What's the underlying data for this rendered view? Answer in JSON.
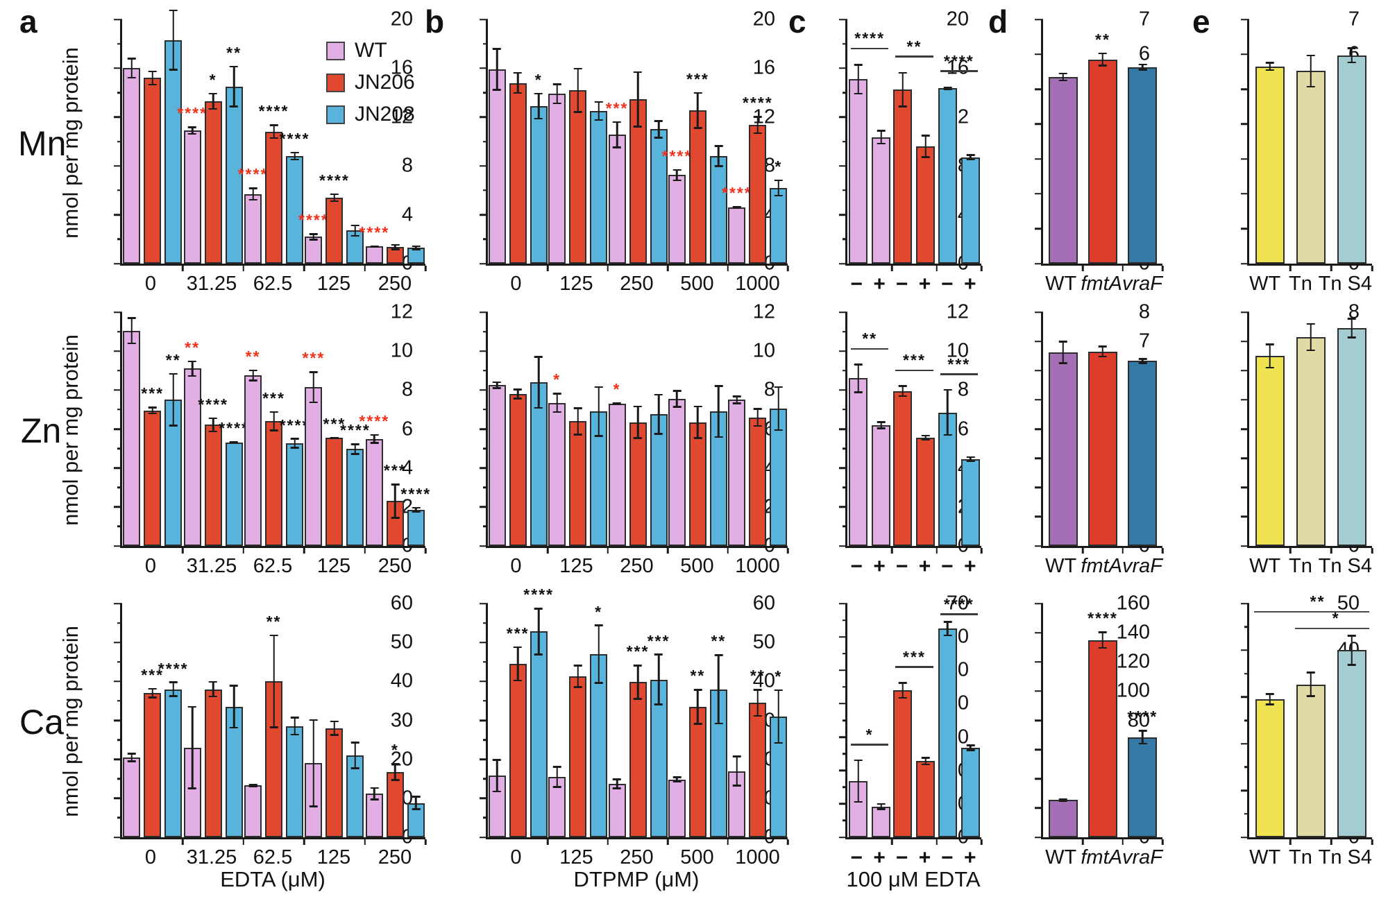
{
  "figure": {
    "panel_letters": [
      {
        "id": "a",
        "label": "a"
      },
      {
        "id": "b",
        "label": "b"
      },
      {
        "id": "c",
        "label": "c"
      },
      {
        "id": "d",
        "label": "d"
      },
      {
        "id": "e",
        "label": "e"
      }
    ],
    "rows": [
      {
        "id": "mn",
        "label": "Mn"
      },
      {
        "id": "zn",
        "label": "Zn"
      },
      {
        "id": "ca",
        "label": "Ca"
      }
    ],
    "y_axis_label": "nmol per mg protein",
    "axis_titles": {
      "a": "EDTA (μM)",
      "b": "DTPMP (μM)",
      "c": "100 μM EDTA"
    },
    "legend": {
      "items": [
        {
          "label": "WT",
          "color": "#E2AFE4"
        },
        {
          "label": "JN206",
          "color": "#E0482F"
        },
        {
          "label": "JN208",
          "color": "#58B4DA"
        }
      ]
    },
    "colors": {
      "wt": "#E2AFE4",
      "jn206": "#E0482F",
      "jn208": "#58B4DA",
      "purple": "#A56FB5",
      "red2": "#DC3D2C",
      "blue2": "#3579A7",
      "yellow": "#F0E351",
      "khaki": "#DFDAA6",
      "teal": "#A3CDD1",
      "axis": "#1a1a1a",
      "sig": "#111111",
      "sig_red": "#F0331C"
    }
  },
  "chart_data": [
    {
      "id": "mn-a",
      "row": "Mn",
      "panel": "a",
      "type": "bar",
      "kind": "grouped",
      "ylim": [
        0,
        20
      ],
      "ymajor": 4,
      "yminor": 2,
      "categories": [
        "0",
        "31.25",
        "62.5",
        "125",
        "250"
      ],
      "series": [
        {
          "name": "WT",
          "color": "wt",
          "values": [
            16.0,
            10.9,
            5.7,
            2.2,
            1.4
          ],
          "errors": [
            0.85,
            0.35,
            0.55,
            0.3,
            0.1
          ],
          "sig": [
            "",
            "r:****",
            "r:****",
            "r:****",
            "r:****"
          ]
        },
        {
          "name": "JN206",
          "color": "jn206",
          "values": [
            15.2,
            13.3,
            10.8,
            5.4,
            1.35
          ],
          "errors": [
            0.6,
            0.7,
            0.6,
            0.35,
            0.25
          ],
          "sig": [
            "",
            "*",
            "****",
            "****",
            ""
          ]
        },
        {
          "name": "JN208",
          "color": "jn208",
          "values": [
            18.3,
            14.5,
            8.8,
            2.7,
            1.3
          ],
          "errors": [
            2.5,
            1.7,
            0.35,
            0.5,
            0.2
          ],
          "sig": [
            "",
            "**",
            "****",
            "",
            ""
          ]
        }
      ]
    },
    {
      "id": "mn-b",
      "row": "Mn",
      "panel": "b",
      "type": "bar",
      "kind": "grouped",
      "ylim": [
        0,
        20
      ],
      "ymajor": 4,
      "yminor": 2,
      "categories": [
        "0",
        "125",
        "250",
        "500",
        "1000"
      ],
      "series": [
        {
          "name": "WT",
          "color": "wt",
          "values": [
            15.9,
            13.9,
            10.55,
            7.25,
            4.6
          ],
          "errors": [
            1.75,
            0.85,
            1.1,
            0.5,
            0.1
          ],
          "sig": [
            "",
            "",
            "r:***",
            "r:****",
            "r:****"
          ]
        },
        {
          "name": "JN206",
          "color": "jn206",
          "values": [
            14.8,
            14.2,
            13.45,
            12.55,
            11.35
          ],
          "errors": [
            0.9,
            1.85,
            2.3,
            1.5,
            0.75
          ],
          "sig": [
            "",
            "",
            "",
            "***",
            "****"
          ]
        },
        {
          "name": "JN208",
          "color": "jn208",
          "values": [
            12.9,
            12.5,
            11.0,
            8.8,
            6.2
          ],
          "errors": [
            1.1,
            0.8,
            0.75,
            0.9,
            0.7
          ],
          "sig": [
            "*",
            "",
            "",
            "",
            "*"
          ]
        }
      ]
    },
    {
      "id": "mn-c",
      "row": "Mn",
      "panel": "c",
      "type": "bar",
      "kind": "pairs",
      "ylim": [
        0,
        20
      ],
      "ymajor": 4,
      "yminor": 2,
      "pair_labels": [
        "−",
        "+"
      ],
      "groups": [
        {
          "name": "WT",
          "color": "wt",
          "values": [
            15.1,
            10.35
          ],
          "errors": [
            1.25,
            0.6
          ],
          "sig": "****"
        },
        {
          "name": "JN206",
          "color": "jn206",
          "values": [
            14.25,
            9.6
          ],
          "errors": [
            1.45,
            0.95
          ],
          "sig": "**"
        },
        {
          "name": "JN208",
          "color": "jn208",
          "values": [
            14.35,
            8.7
          ],
          "errors": [
            0.15,
            0.25
          ],
          "sig": "****"
        }
      ]
    },
    {
      "id": "mn-d",
      "row": "Mn",
      "panel": "d",
      "type": "bar",
      "kind": "single",
      "ylim": [
        0,
        7
      ],
      "ymajor": 1,
      "yminor": 0,
      "bars": [
        {
          "label": "WT",
          "italic": false,
          "color": "purple",
          "value": 5.35,
          "error": 0.12,
          "sig": ""
        },
        {
          "label": "fmtA",
          "italic": true,
          "color": "red2",
          "value": 5.85,
          "error": 0.2,
          "sig": "**"
        },
        {
          "label": "vraF",
          "italic": true,
          "color": "blue2",
          "value": 5.63,
          "error": 0.1,
          "sig": ""
        }
      ]
    },
    {
      "id": "mn-e",
      "row": "Mn",
      "panel": "e",
      "type": "bar",
      "kind": "single",
      "ylim": [
        0,
        7
      ],
      "ymajor": 1,
      "yminor": 0,
      "bars": [
        {
          "label": "WT",
          "italic": false,
          "color": "yellow",
          "value": 5.65,
          "error": 0.13,
          "sig": ""
        },
        {
          "label": "Tn",
          "italic": false,
          "color": "khaki",
          "value": 5.52,
          "error": 0.47,
          "sig": ""
        },
        {
          "label": "Tn S4",
          "italic": false,
          "color": "teal",
          "value": 5.97,
          "error": 0.23,
          "sig": ""
        }
      ]
    },
    {
      "id": "zn-a",
      "row": "Zn",
      "panel": "a",
      "type": "bar",
      "kind": "grouped",
      "ylim": [
        0,
        12
      ],
      "ymajor": 2,
      "yminor": 1,
      "categories": [
        "0",
        "31.25",
        "62.5",
        "125",
        "250"
      ],
      "series": [
        {
          "name": "WT",
          "color": "wt",
          "values": [
            11.05,
            9.1,
            8.75,
            8.15,
            5.5
          ],
          "errors": [
            0.7,
            0.42,
            0.3,
            0.82,
            0.25
          ],
          "sig": [
            "",
            "r:**",
            "r:**",
            "r:***",
            "r:****"
          ]
        },
        {
          "name": "JN206",
          "color": "jn206",
          "values": [
            6.95,
            6.22,
            6.4,
            5.55,
            2.3
          ],
          "errors": [
            0.2,
            0.38,
            0.52,
            0.05,
            0.9
          ],
          "sig": [
            "***",
            "****",
            "***",
            "***",
            "***"
          ]
        },
        {
          "name": "JN208",
          "color": "jn208",
          "values": [
            7.5,
            5.32,
            5.27,
            4.97,
            1.85
          ],
          "errors": [
            1.37,
            0.06,
            0.27,
            0.3,
            0.15
          ],
          "sig": [
            "**",
            "****",
            "****",
            "****",
            "****"
          ]
        }
      ]
    },
    {
      "id": "zn-b",
      "row": "Zn",
      "panel": "b",
      "type": "bar",
      "kind": "grouped",
      "ylim": [
        0,
        12
      ],
      "ymajor": 2,
      "yminor": 1,
      "categories": [
        "0",
        "125",
        "250",
        "500",
        "1000"
      ],
      "series": [
        {
          "name": "WT",
          "color": "wt",
          "values": [
            8.25,
            7.35,
            7.3,
            7.55,
            7.5
          ],
          "errors": [
            0.2,
            0.52,
            0.08,
            0.45,
            0.22
          ],
          "sig": [
            "",
            "r:*",
            "r:*",
            "",
            ""
          ]
        },
        {
          "name": "JN206",
          "color": "jn206",
          "values": [
            7.8,
            6.4,
            6.35,
            6.35,
            6.6
          ],
          "errors": [
            0.27,
            0.72,
            0.85,
            0.85,
            0.48
          ],
          "sig": [
            "",
            "",
            "",
            "",
            ""
          ]
        },
        {
          "name": "JN208",
          "color": "jn208",
          "values": [
            8.4,
            6.9,
            6.75,
            6.9,
            7.05
          ],
          "errors": [
            1.35,
            1.3,
            1.05,
            1.35,
            1.15
          ],
          "sig": [
            "",
            "",
            "",
            "",
            ""
          ]
        }
      ]
    },
    {
      "id": "zn-c",
      "row": "Zn",
      "panel": "c",
      "type": "bar",
      "kind": "pairs",
      "ylim": [
        0,
        12
      ],
      "ymajor": 2,
      "yminor": 1,
      "pair_labels": [
        "−",
        "+"
      ],
      "groups": [
        {
          "name": "WT",
          "color": "wt",
          "values": [
            8.6,
            6.2
          ],
          "errors": [
            0.75,
            0.2
          ],
          "sig": "**"
        },
        {
          "name": "JN206",
          "color": "jn206",
          "values": [
            7.95,
            5.55
          ],
          "errors": [
            0.3,
            0.15
          ],
          "sig": "***"
        },
        {
          "name": "JN208",
          "color": "jn208",
          "values": [
            6.85,
            4.45
          ],
          "errors": [
            1.2,
            0.15
          ],
          "sig": "***"
        }
      ]
    },
    {
      "id": "zn-d",
      "row": "Zn",
      "panel": "d",
      "type": "bar",
      "kind": "single",
      "ylim": [
        0,
        8
      ],
      "ymajor": 1,
      "yminor": 0,
      "bars": [
        {
          "label": "WT",
          "italic": false,
          "color": "purple",
          "value": 6.62,
          "error": 0.4,
          "sig": ""
        },
        {
          "label": "fmtA",
          "italic": true,
          "color": "red2",
          "value": 6.65,
          "error": 0.2,
          "sig": ""
        },
        {
          "label": "vraF",
          "italic": true,
          "color": "blue2",
          "value": 6.33,
          "error": 0.1,
          "sig": ""
        }
      ]
    },
    {
      "id": "zn-e",
      "row": "Zn",
      "panel": "e",
      "type": "bar",
      "kind": "single",
      "ylim": [
        0,
        8
      ],
      "ymajor": 1,
      "yminor": 0,
      "bars": [
        {
          "label": "WT",
          "italic": false,
          "color": "yellow",
          "value": 6.5,
          "error": 0.43,
          "sig": ""
        },
        {
          "label": "Tn",
          "italic": false,
          "color": "khaki",
          "value": 7.15,
          "error": 0.48,
          "sig": ""
        },
        {
          "label": "Tn S4",
          "italic": false,
          "color": "teal",
          "value": 7.45,
          "error": 0.35,
          "sig": ""
        }
      ]
    },
    {
      "id": "ca-a",
      "row": "Ca",
      "panel": "a",
      "type": "bar",
      "kind": "grouped",
      "ylim": [
        0,
        60
      ],
      "ymajor": 10,
      "yminor": 5,
      "categories": [
        "0",
        "31.25",
        "62.5",
        "125",
        "250"
      ],
      "series": [
        {
          "name": "WT",
          "color": "wt",
          "values": [
            20.5,
            23,
            13.3,
            19,
            11.2
          ],
          "errors": [
            1.2,
            10.7,
            0.4,
            11.3,
            1.7
          ],
          "sig": [
            "",
            "",
            "",
            "",
            ""
          ]
        },
        {
          "name": "JN206",
          "color": "jn206",
          "values": [
            37,
            38,
            40,
            28,
            16.8
          ],
          "errors": [
            1.3,
            2.1,
            12,
            2,
            2.3
          ],
          "sig": [
            "***",
            "",
            "**",
            "",
            "*"
          ]
        },
        {
          "name": "JN208",
          "color": "jn208",
          "values": [
            38,
            33.5,
            28.5,
            21,
            8.8
          ],
          "errors": [
            2,
            5.6,
            2.4,
            3.5,
            1.8
          ],
          "sig": [
            "****",
            "",
            "",
            "",
            ""
          ]
        }
      ]
    },
    {
      "id": "ca-b",
      "row": "Ca",
      "panel": "b",
      "type": "bar",
      "kind": "grouped",
      "ylim": [
        0,
        60
      ],
      "ymajor": 10,
      "yminor": 5,
      "categories": [
        "0",
        "125",
        "250",
        "500",
        "1000"
      ],
      "series": [
        {
          "name": "WT",
          "color": "wt",
          "values": [
            15.8,
            15.5,
            13.7,
            14.8,
            17
          ],
          "errors": [
            4.3,
            2.8,
            1.4,
            0.8,
            4
          ],
          "sig": [
            "",
            "",
            "",
            "",
            ""
          ]
        },
        {
          "name": "JN206",
          "color": "jn206",
          "values": [
            44.5,
            41.3,
            39.8,
            33.5,
            34.5
          ],
          "errors": [
            4.5,
            3,
            4.5,
            4.6,
            3.6
          ],
          "sig": [
            "***",
            "",
            "***",
            "**",
            "**"
          ]
        },
        {
          "name": "JN208",
          "color": "jn208",
          "values": [
            52.8,
            47,
            40.5,
            38,
            31
          ],
          "errors": [
            6.1,
            7.6,
            6.6,
            9,
            7
          ],
          "sig": [
            "****",
            "*",
            "***",
            "**",
            "*"
          ]
        }
      ]
    },
    {
      "id": "ca-c",
      "row": "Ca",
      "panel": "c",
      "type": "bar",
      "kind": "pairs",
      "ylim": [
        0,
        70
      ],
      "ymajor": 10,
      "yminor": 5,
      "pair_labels": [
        "−",
        "+"
      ],
      "groups": [
        {
          "name": "WT",
          "color": "wt",
          "values": [
            16.8,
            9.2
          ],
          "errors": [
            6.5,
            1
          ],
          "sig": "*"
        },
        {
          "name": "JN206",
          "color": "jn206",
          "values": [
            44,
            22.8
          ],
          "errors": [
            2.5,
            1.2
          ],
          "sig": "***"
        },
        {
          "name": "JN208",
          "color": "jn208",
          "values": [
            62.5,
            26.8
          ],
          "errors": [
            2.3,
            1
          ],
          "sig": "****"
        }
      ]
    },
    {
      "id": "ca-d",
      "row": "Ca",
      "panel": "d",
      "type": "bar",
      "kind": "single",
      "ylim": [
        0,
        160
      ],
      "ymajor": 20,
      "yminor": 0,
      "bars": [
        {
          "label": "WT",
          "italic": false,
          "color": "purple",
          "value": 25.5,
          "error": 1.3,
          "sig": ""
        },
        {
          "label": "fmtA",
          "italic": true,
          "color": "red2",
          "value": 135,
          "error": 6,
          "sig": "****"
        },
        {
          "label": "vraF",
          "italic": true,
          "color": "blue2",
          "value": 68.5,
          "error": 5,
          "sig": "****"
        }
      ]
    },
    {
      "id": "ca-e",
      "row": "Ca",
      "panel": "e",
      "type": "bar",
      "kind": "single",
      "ylim": [
        0,
        50
      ],
      "ymajor": 10,
      "yminor": 5,
      "bars": [
        {
          "label": "WT",
          "italic": false,
          "color": "yellow",
          "value": 29.5,
          "error": 1.3,
          "sig": ""
        },
        {
          "label": "Tn",
          "italic": false,
          "color": "khaki",
          "value": 32.7,
          "error": 2.7,
          "sig": ""
        },
        {
          "label": "Tn S4",
          "italic": false,
          "color": "teal",
          "value": 40,
          "error": 3.3,
          "sig": ""
        }
      ],
      "comparisons": [
        {
          "from": 0,
          "to": 2,
          "label": "**",
          "y": 48
        },
        {
          "from": 1,
          "to": 2,
          "label": "*",
          "y": 44.5
        }
      ]
    }
  ]
}
